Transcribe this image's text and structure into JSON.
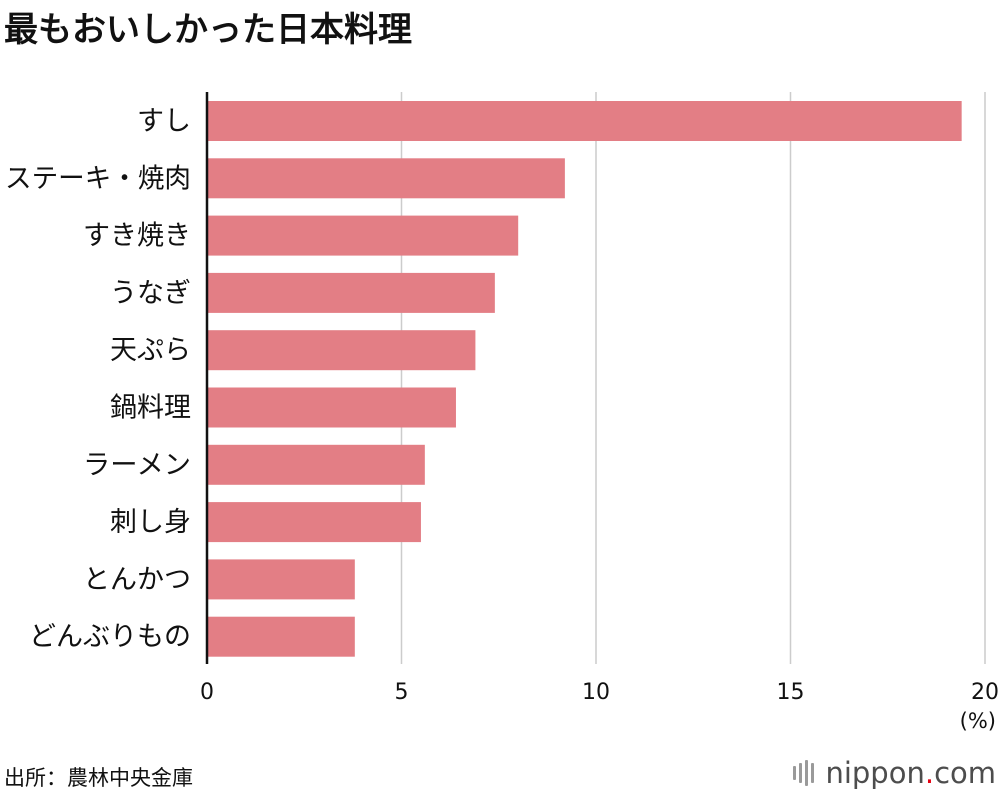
{
  "title": "最もおいしかった日本料理",
  "source": "出所：農林中央金庫",
  "logo": {
    "name": "nippon",
    "dot": ".",
    "domain": "com"
  },
  "colors": {
    "bar": "#e37e85",
    "grid": "#cccccc",
    "axis": "#111111"
  },
  "chart_data": {
    "type": "bar",
    "orientation": "horizontal",
    "title": "最もおいしかった日本料理",
    "categories": [
      "すし",
      "ステーキ・焼肉",
      "すき焼き",
      "うなぎ",
      "天ぷら",
      "鍋料理",
      "ラーメン",
      "刺し身",
      "とんかつ",
      "どんぶりもの"
    ],
    "values": [
      19.4,
      9.2,
      8.0,
      7.4,
      6.9,
      6.4,
      5.6,
      5.5,
      3.8,
      3.8
    ],
    "xlim": [
      0,
      20
    ],
    "xticks": [
      "0",
      "5",
      "10",
      "15",
      "20"
    ],
    "xunit": "(%)",
    "grid": true
  }
}
